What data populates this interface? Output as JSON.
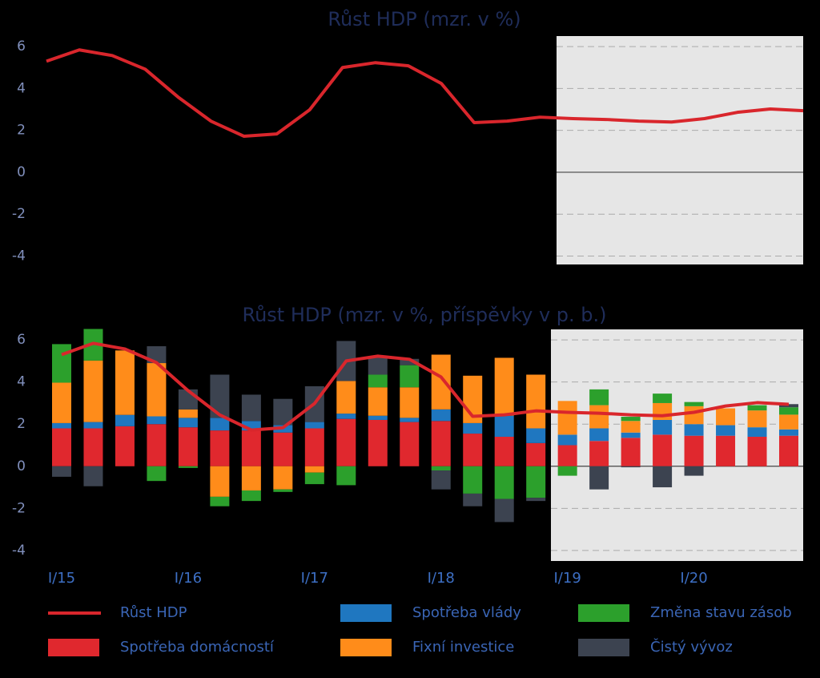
{
  "chart_data": [
    {
      "type": "line",
      "title": "Růst HDP (mzr. v %)",
      "categories": [
        "I/15",
        null,
        null,
        null,
        "I/16",
        null,
        null,
        null,
        "I/17",
        null,
        null,
        null,
        "I/18",
        null,
        null,
        null,
        "I/19",
        null,
        null,
        null,
        "I/20",
        null,
        null,
        null
      ],
      "values": [
        5.3,
        5.84,
        5.57,
        4.92,
        3.59,
        2.44,
        1.72,
        1.83,
        2.98,
        5.0,
        5.23,
        5.08,
        4.24,
        2.37,
        2.44,
        2.63,
        2.56,
        2.52,
        2.44,
        2.4,
        2.56,
        2.86,
        3.02,
        2.94
      ],
      "color": "#d9262c",
      "ylim": [
        -4.4,
        6.5
      ],
      "yticks": [
        -4,
        -2,
        0,
        2,
        4,
        6
      ],
      "grid": true
    },
    {
      "type": "bar",
      "stacked": true,
      "title": "Růst HDP (mzr. v %, příspěvky v p. b.)",
      "categories": [
        "I/15",
        null,
        null,
        null,
        "I/16",
        null,
        null,
        null,
        "I/17",
        null,
        null,
        null,
        "I/18",
        null,
        null,
        null,
        "I/19",
        null,
        null,
        null,
        "I/20",
        null,
        null,
        null
      ],
      "series": [
        {
          "name": "Spotřeba domácností",
          "color": "#e0282e",
          "values": [
            1.8,
            1.8,
            1.9,
            2.0,
            1.85,
            1.7,
            1.7,
            1.6,
            1.8,
            2.25,
            2.2,
            2.1,
            2.15,
            1.55,
            1.4,
            1.1,
            1.0,
            1.2,
            1.35,
            1.5,
            1.45,
            1.45,
            1.4,
            1.45
          ]
        },
        {
          "name": "Spotřeba vlády",
          "color": "#1f77c0",
          "values": [
            0.25,
            0.3,
            0.54,
            0.37,
            0.45,
            0.6,
            0.45,
            0.35,
            0.3,
            0.25,
            0.2,
            0.2,
            0.55,
            0.5,
            1.0,
            0.7,
            0.5,
            0.6,
            0.25,
            0.7,
            0.55,
            0.5,
            0.45,
            0.3
          ]
        },
        {
          "name": "Fixní investice",
          "color": "#ff8c1a",
          "values": [
            1.92,
            2.92,
            3.06,
            2.53,
            0.4,
            -1.45,
            -1.15,
            -1.1,
            -0.3,
            1.55,
            1.35,
            1.45,
            2.6,
            2.25,
            2.75,
            2.55,
            1.6,
            1.1,
            0.55,
            0.8,
            0.85,
            0.8,
            0.8,
            0.7
          ]
        },
        {
          "name": "Změna stavu zásob",
          "color": "#2ca02c",
          "values": [
            1.83,
            1.5,
            0,
            -0.7,
            -0.08,
            -0.45,
            -0.5,
            -0.12,
            -0.55,
            -0.9,
            0.6,
            1.05,
            -0.2,
            -1.3,
            -1.55,
            -1.5,
            -0.45,
            0.75,
            0.2,
            0.45,
            0.2,
            0,
            0.25,
            0.35
          ]
        },
        {
          "name": "Čistý vývoz",
          "color": "#3c4350",
          "values": [
            -0.5,
            -0.95,
            0,
            0.8,
            0.95,
            2.05,
            1.25,
            1.25,
            1.7,
            1.9,
            0.8,
            0.3,
            -0.9,
            -0.6,
            -1.1,
            -0.15,
            0,
            -1.1,
            -0.05,
            -1.0,
            -0.45,
            0,
            0,
            0.15
          ]
        },
        {
          "name": "Růst HDP",
          "type": "line",
          "color": "#d9262c",
          "values": [
            5.3,
            5.84,
            5.57,
            4.92,
            3.59,
            2.44,
            1.72,
            1.83,
            2.98,
            5.0,
            5.23,
            5.08,
            4.24,
            2.37,
            2.44,
            2.63,
            2.56,
            2.52,
            2.44,
            2.4,
            2.56,
            2.86,
            3.02,
            2.94
          ]
        }
      ],
      "ylim": [
        -4.5,
        6.5
      ],
      "yticks": [
        -4,
        -2,
        0,
        2,
        4,
        6
      ],
      "grid": true
    }
  ]
}
